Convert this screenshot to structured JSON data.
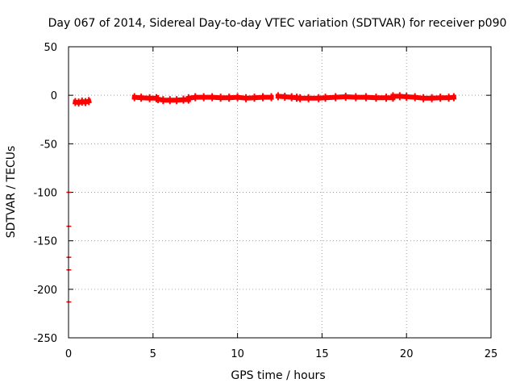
{
  "chart_data": {
    "type": "scatter",
    "title": "Day 067 of 2014, Sidereal Day-to-day VTEC variation (SDTVAR) for receiver p090",
    "xlabel": "GPS time / hours",
    "ylabel": "SDTVAR / TECUs",
    "xlim": [
      0,
      25
    ],
    "ylim": [
      -250,
      50
    ],
    "xticks": [
      0,
      5,
      10,
      15,
      20,
      25
    ],
    "yticks": [
      50,
      0,
      -50,
      -100,
      -150,
      -200,
      -250
    ],
    "grid": true,
    "legend": "none",
    "series_color": "#ff0000",
    "segments": [
      {
        "x": [
          0.4,
          0.6,
          0.8,
          1.0,
          1.2
        ],
        "y": [
          -7.0,
          -7.5,
          -6.5,
          -7.0,
          -6.0
        ]
      },
      {
        "x": [
          3.9,
          4.3,
          4.8,
          5.2
        ],
        "y": [
          -2.0,
          -2.5,
          -3.0,
          -3.0
        ]
      },
      {
        "x": [
          5.3,
          5.6,
          6.0,
          6.4,
          6.8,
          7.1
        ],
        "y": [
          -4.0,
          -5.0,
          -5.0,
          -5.0,
          -4.5,
          -4.5
        ]
      },
      {
        "x": [
          7.1,
          7.5,
          8.0,
          8.5,
          9.0,
          9.5,
          10.0,
          10.5,
          11.0,
          11.5,
          12.0
        ],
        "y": [
          -3.0,
          -2.0,
          -2.0,
          -2.0,
          -2.5,
          -2.5,
          -2.0,
          -3.0,
          -2.5,
          -2.0,
          -2.0
        ]
      },
      {
        "x": [
          12.4,
          12.8,
          13.2,
          13.5
        ],
        "y": [
          -1.0,
          -1.5,
          -2.0,
          -2.5
        ]
      },
      {
        "x": [
          13.7,
          14.2,
          14.8,
          15.2,
          15.8,
          16.4,
          17.0,
          17.6,
          18.2,
          18.8,
          19.2
        ],
        "y": [
          -3.0,
          -3.0,
          -3.0,
          -2.5,
          -2.0,
          -1.5,
          -2.0,
          -2.0,
          -2.5,
          -2.5,
          -2.5
        ]
      },
      {
        "x": [
          19.2,
          19.6,
          20.0,
          20.5,
          21.0,
          21.5,
          22.0,
          22.5,
          22.8
        ],
        "y": [
          -1.0,
          -1.0,
          -1.5,
          -2.0,
          -3.0,
          -3.0,
          -2.5,
          -2.5,
          -2.0
        ]
      }
    ],
    "outliers": {
      "x": [
        0.02,
        0.02,
        0.02,
        0.02,
        0.02
      ],
      "y": [
        -100,
        -135,
        -167,
        -180,
        -213
      ]
    }
  }
}
